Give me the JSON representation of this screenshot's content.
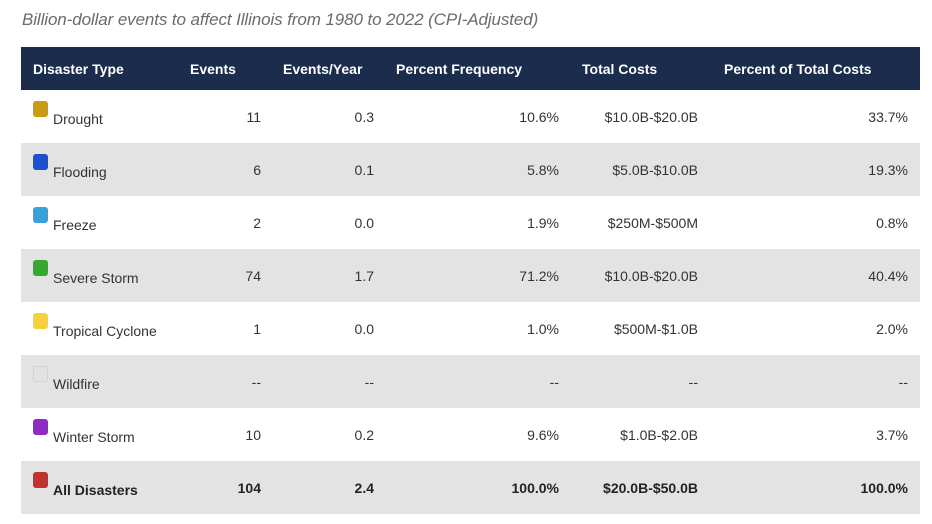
{
  "caption": "Billion-dollar events to affect Illinois from 1980 to 2022 (CPI-Adjusted)",
  "chart_data": {
    "type": "table",
    "title": "Billion-dollar events to affect Illinois from 1980 to 2022 (CPI-Adjusted)",
    "columns": [
      "Disaster Type",
      "Events",
      "Events/Year",
      "Percent Frequency",
      "Total Costs",
      "Percent of Total Costs"
    ],
    "rows": [
      {
        "type": "Drought",
        "color": "#c99a12",
        "events": "11",
        "events_per_year": "0.3",
        "percent_frequency": "10.6%",
        "total_costs": "$10.0B-$20.0B",
        "percent_total_costs": "33.7%"
      },
      {
        "type": "Flooding",
        "color": "#1d4fd1",
        "events": "6",
        "events_per_year": "0.1",
        "percent_frequency": "5.8%",
        "total_costs": "$5.0B-$10.0B",
        "percent_total_costs": "19.3%"
      },
      {
        "type": "Freeze",
        "color": "#3aa0d8",
        "events": "2",
        "events_per_year": "0.0",
        "percent_frequency": "1.9%",
        "total_costs": "$250M-$500M",
        "percent_total_costs": "0.8%"
      },
      {
        "type": "Severe Storm",
        "color": "#35a832",
        "events": "74",
        "events_per_year": "1.7",
        "percent_frequency": "71.2%",
        "total_costs": "$10.0B-$20.0B",
        "percent_total_costs": "40.4%"
      },
      {
        "type": "Tropical Cyclone",
        "color": "#f5d13c",
        "events": "1",
        "events_per_year": "0.0",
        "percent_frequency": "1.0%",
        "total_costs": "$500M-$1.0B",
        "percent_total_costs": "2.0%"
      },
      {
        "type": "Wildfire",
        "color": "",
        "events": "--",
        "events_per_year": "--",
        "percent_frequency": "--",
        "total_costs": "--",
        "percent_total_costs": "--"
      },
      {
        "type": "Winter Storm",
        "color": "#8e2bc4",
        "events": "10",
        "events_per_year": "0.2",
        "percent_frequency": "9.6%",
        "total_costs": "$1.0B-$2.0B",
        "percent_total_costs": "3.7%"
      }
    ],
    "total": {
      "type": "All Disasters",
      "color": "#c0322b",
      "events": "104",
      "events_per_year": "2.4",
      "percent_frequency": "100.0%",
      "total_costs": "$20.0B-$50.0B",
      "percent_total_costs": "100.0%"
    }
  },
  "colors": {
    "header_bg": "#1b2c4d",
    "stripe_bg": "#e3e3e3"
  }
}
